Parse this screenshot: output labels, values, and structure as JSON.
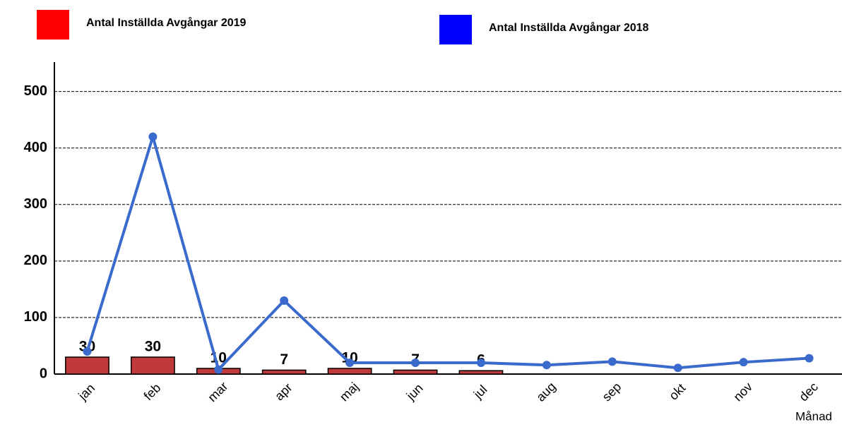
{
  "chart_data": {
    "type": "bar",
    "x_label": "Månad",
    "categories": [
      "jan",
      "feb",
      "mar",
      "apr",
      "maj",
      "jun",
      "jul",
      "aug",
      "sep",
      "okt",
      "nov",
      "dec"
    ],
    "series": [
      {
        "name": "Antal Inställda Avgångar 2019",
        "type": "bar",
        "color": "#c0393b",
        "legend_color": "#ff0000",
        "values": [
          30,
          30,
          10,
          7,
          10,
          7,
          6,
          null,
          null,
          null,
          null,
          null
        ]
      },
      {
        "name": "Antal Inställda Avgångar 2018",
        "type": "line",
        "color": "#3a6bcc",
        "legend_color": "#0000ff",
        "values": [
          40,
          420,
          8,
          130,
          20,
          20,
          20,
          16,
          22,
          11,
          21,
          28
        ]
      }
    ],
    "ylim": [
      0,
      552
    ],
    "yticks": [
      0,
      100,
      200,
      300,
      400,
      500
    ],
    "grid": true
  }
}
